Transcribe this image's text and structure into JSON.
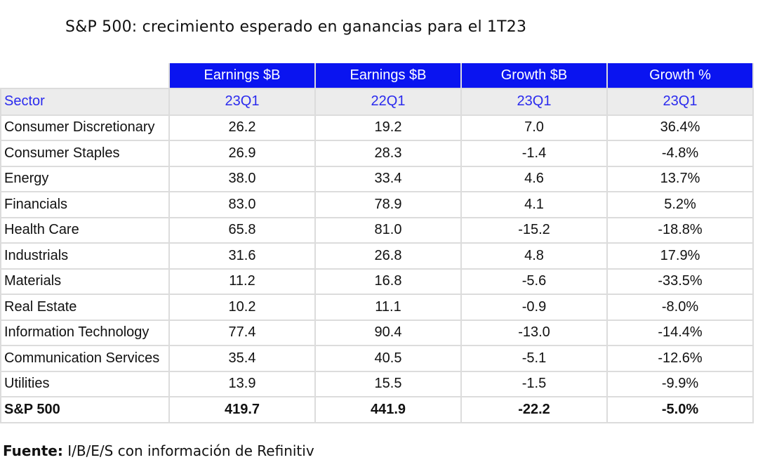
{
  "title": "S&P 500: crecimiento esperado en ganancias para el 1T23",
  "chart_data": {
    "type": "table",
    "header": [
      "",
      "Earnings $B",
      "Earnings $B",
      "Growth $B",
      "Growth %"
    ],
    "subheader": [
      "Sector",
      "23Q1",
      "22Q1",
      "23Q1",
      "23Q1"
    ],
    "rows": [
      [
        "Consumer Discretionary",
        "26.2",
        "19.2",
        "7.0",
        "36.4%"
      ],
      [
        "Consumer Staples",
        "26.9",
        "28.3",
        "-1.4",
        "-4.8%"
      ],
      [
        "Energy",
        "38.0",
        "33.4",
        "4.6",
        "13.7%"
      ],
      [
        "Financials",
        "83.0",
        "78.9",
        "4.1",
        "5.2%"
      ],
      [
        "Health Care",
        "65.8",
        "81.0",
        "-15.2",
        "-18.8%"
      ],
      [
        "Industrials",
        "31.6",
        "26.8",
        "4.8",
        "17.9%"
      ],
      [
        "Materials",
        "11.2",
        "16.8",
        "-5.6",
        "-33.5%"
      ],
      [
        "Real Estate",
        "10.2",
        "11.1",
        "-0.9",
        "-8.0%"
      ],
      [
        "Information Technology",
        "77.4",
        "90.4",
        "-13.0",
        "-14.4%"
      ],
      [
        "Communication Services",
        "35.4",
        "40.5",
        "-5.1",
        "-12.6%"
      ],
      [
        "Utilities",
        "13.9",
        "15.5",
        "-1.5",
        "-9.9%"
      ]
    ],
    "total": [
      "S&P 500",
      "419.7",
      "441.9",
      "-22.2",
      "-5.0%"
    ]
  },
  "footer": {
    "label": "Fuente:",
    "text": " I/B/E/S con información de Refinitiv"
  },
  "colors": {
    "header_bg": "#0a14f0",
    "subheader_text": "#2a2aee",
    "subheader_bg": "#ececec"
  }
}
